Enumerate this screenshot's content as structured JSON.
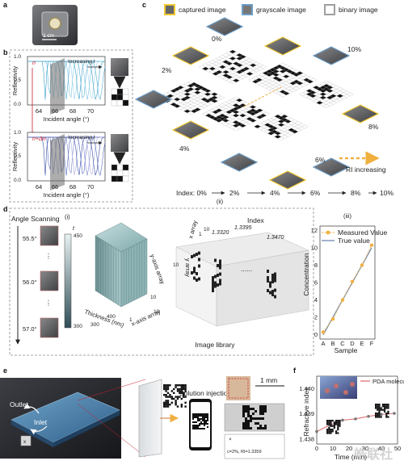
{
  "panel_labels": {
    "a": "a",
    "b": "b",
    "c": "c",
    "d": "d",
    "e": "e",
    "f": "f"
  },
  "colors": {
    "captured": "#f2c832",
    "grayscale": "#6c9ec9",
    "binary": "#9e9e9e",
    "accent_red": "#c8202c",
    "orange": "#f0b040",
    "blue": "#3a4ea8"
  },
  "panel_a": {
    "scale_label": "1 cm"
  },
  "panel_b": {
    "top": {
      "medium_label": "n",
      "increasing_label": "Increasing t"
    },
    "bottom": {
      "medium_label": "n+Δn",
      "increasing_label": "Increasing t"
    },
    "ylabel": "Reflectivity",
    "xlabel": "Incident angle (°)",
    "xticks": [
      "64",
      "66",
      "68",
      "70"
    ],
    "yticks": [
      "0.0",
      "0.5",
      "1.0"
    ]
  },
  "panel_c": {
    "legend": [
      {
        "label": "captured image",
        "key": "captured"
      },
      {
        "label": "grayscale image",
        "key": "grayscale"
      },
      {
        "label": "binary image",
        "key": "binary"
      }
    ],
    "percents": [
      "0%",
      "2%",
      "4%",
      "6%",
      "8%",
      "10%"
    ],
    "arrow_label": "RI increasing",
    "index_row": [
      "Index: 0%",
      "2%",
      "4%",
      "6%",
      "8%",
      "10%"
    ],
    "sub_labels": [
      "(i)",
      "(ii)",
      "(iii)"
    ]
  },
  "panel_d": {
    "scan_title": "Angle Scanning",
    "angles": [
      "55.5°",
      "56.0°",
      "57.0°"
    ],
    "colorbar_label": "t",
    "colorbar_ticks": [
      "450",
      "300"
    ],
    "cube_axes": {
      "y": "y-axis array",
      "x": "x-axis array",
      "z": "Thickness (nm)"
    },
    "cube_ticks": {
      "z": [
        "300",
        "400"
      ],
      "y": [
        "10"
      ],
      "x": [
        "1",
        "10"
      ]
    },
    "library": {
      "x_axis": "x array",
      "y_axis": "y array",
      "index_title": "Index",
      "index_values": [
        "1.3320",
        "1.3395",
        "1.3470"
      ],
      "ticks": [
        "1",
        "10",
        "10"
      ],
      "caption": "Image library",
      "dots": "......"
    }
  },
  "panel_d_chart": {
    "chart_data": {
      "type": "scatter",
      "categories": [
        "A",
        "B",
        "C",
        "D",
        "E",
        "F"
      ],
      "series": [
        {
          "name": "Measured Value",
          "values": [
            0.3,
            1.8,
            4.0,
            6.1,
            8.0,
            10.3
          ]
        },
        {
          "name": "True value",
          "values": [
            0,
            2,
            4,
            6,
            8,
            10
          ]
        }
      ],
      "xlabel": "Sample",
      "ylabel": "Concentration",
      "yticks": [
        "0",
        "2",
        "4",
        "6",
        "8",
        "10",
        "12"
      ],
      "ylim": [
        -0.5,
        12.5
      ],
      "legend": "top-left"
    }
  },
  "panel_e": {
    "outlet": "Outlet",
    "inlet": "Inlet",
    "injection": "Solution injection",
    "scale": "1 mm",
    "readout": "c=2%, RI=1.3359",
    "close": "×"
  },
  "panel_f": {
    "chart_data": {
      "type": "scatter",
      "x": [
        0,
        8,
        16,
        24,
        32,
        40,
        48
      ],
      "series": [
        {
          "name": "PDA molecules",
          "values": [
            1.4383,
            1.43855,
            1.43875,
            1.4388,
            1.4389,
            1.43898,
            1.43902
          ]
        }
      ],
      "xlabel": "Time (min)",
      "ylabel": "Refractive index",
      "xticks": [
        "0",
        "10",
        "20",
        "30",
        "40",
        "50"
      ],
      "yticks": [
        "1.438",
        "1.439",
        "1.440"
      ],
      "ylim": [
        1.4378,
        1.4405
      ],
      "xlim": [
        0,
        50
      ]
    },
    "watermark": "皓联社"
  }
}
